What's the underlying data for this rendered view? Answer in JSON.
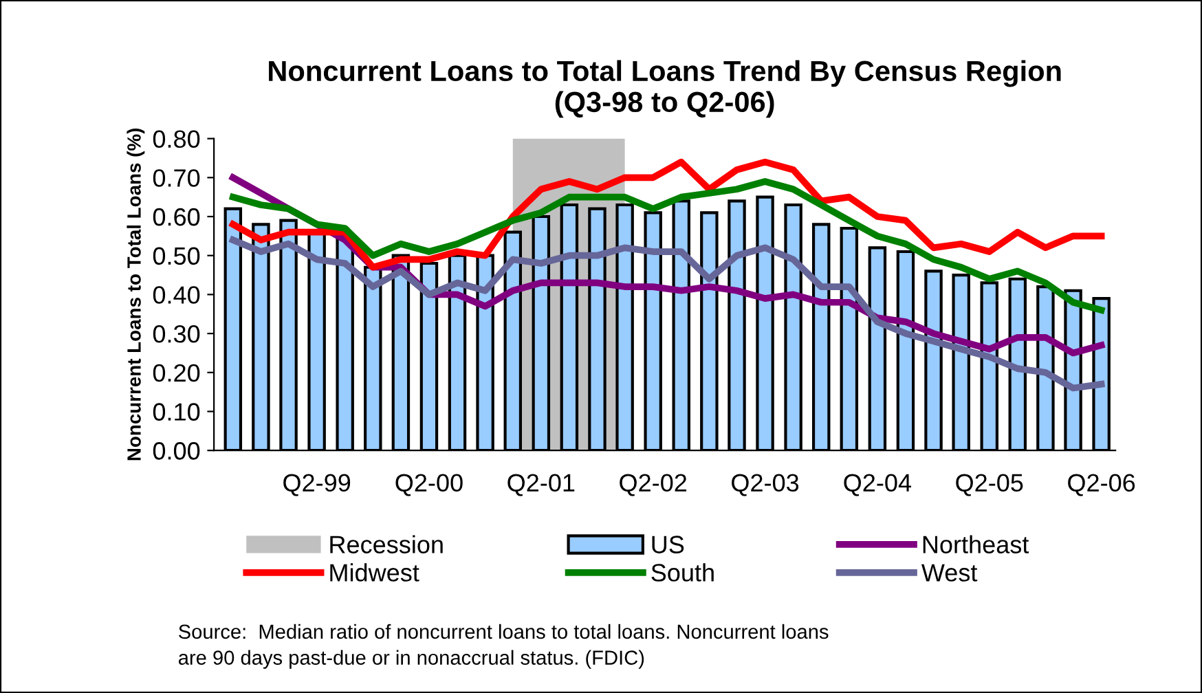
{
  "chart_data": {
    "type": "bar",
    "title": "Noncurrent Loans to Total Loans Trend By Census Region\n(Q3-98 to Q2-06)",
    "ylabel": "Noncurrent Loans to Total Loans (%)",
    "x": [
      "1998-09",
      "1998-12",
      "1999-03",
      "1999-06",
      "1999-09",
      "1999-12",
      "2000-03",
      "2000-06",
      "2000-09",
      "2000-12",
      "2001-03",
      "2001-06",
      "2001-09",
      "2001-12",
      "2002-03",
      "2002-06",
      "2002-09",
      "2002-12",
      "2003-03",
      "2003-06",
      "2003-09",
      "2003-12",
      "2004-03",
      "2004-06",
      "2004-09",
      "2004-12",
      "2005-03",
      "2005-06",
      "2005-09",
      "2005-12",
      "2006-03",
      "2006-06"
    ],
    "series": [
      {
        "name": "US",
        "color": "#99ccff",
        "values": [
          0.62,
          0.58,
          0.59,
          0.56,
          0.55,
          0.47,
          0.5,
          0.48,
          0.5,
          0.5,
          0.56,
          0.6,
          0.63,
          0.62,
          0.63,
          0.61,
          0.64,
          0.61,
          0.64,
          0.65,
          0.63,
          0.58,
          0.57,
          0.52,
          0.51,
          0.46,
          0.45,
          0.43,
          0.44,
          0.42,
          0.41,
          0.39
        ]
      },
      {
        "name": "Northeast",
        "type": "line",
        "color": "#800080",
        "values": [
          0.7,
          0.66,
          0.62,
          0.58,
          0.54,
          0.47,
          0.47,
          0.4,
          0.4,
          0.37,
          0.41,
          0.43,
          0.43,
          0.43,
          0.42,
          0.42,
          0.41,
          0.42,
          0.41,
          0.39,
          0.4,
          0.38,
          0.38,
          0.34,
          0.33,
          0.3,
          0.28,
          0.26,
          0.29,
          0.29,
          0.25,
          0.27
        ]
      },
      {
        "name": "Midwest",
        "type": "line",
        "color": "#ff0000",
        "values": [
          0.58,
          0.54,
          0.56,
          0.56,
          0.56,
          0.47,
          0.49,
          0.49,
          0.51,
          0.5,
          0.6,
          0.67,
          0.69,
          0.67,
          0.7,
          0.7,
          0.74,
          0.67,
          0.72,
          0.74,
          0.72,
          0.64,
          0.65,
          0.6,
          0.59,
          0.52,
          0.53,
          0.51,
          0.56,
          0.52,
          0.55,
          0.55
        ]
      },
      {
        "name": "South",
        "type": "line",
        "color": "#008000",
        "values": [
          0.65,
          0.63,
          0.62,
          0.58,
          0.57,
          0.5,
          0.53,
          0.51,
          0.53,
          0.56,
          0.59,
          0.61,
          0.65,
          0.65,
          0.65,
          0.62,
          0.65,
          0.66,
          0.67,
          0.69,
          0.67,
          0.63,
          0.59,
          0.55,
          0.53,
          0.49,
          0.47,
          0.44,
          0.46,
          0.43,
          0.38,
          0.36
        ]
      },
      {
        "name": "West",
        "type": "line",
        "color": "#666699",
        "values": [
          0.54,
          0.51,
          0.53,
          0.49,
          0.48,
          0.42,
          0.46,
          0.4,
          0.43,
          0.41,
          0.49,
          0.48,
          0.5,
          0.5,
          0.52,
          0.51,
          0.51,
          0.44,
          0.5,
          0.52,
          0.49,
          0.42,
          0.42,
          0.33,
          0.3,
          0.28,
          0.26,
          0.24,
          0.21,
          0.2,
          0.16,
          0.17
        ]
      }
    ],
    "bands": [
      {
        "axis": "x",
        "from": "2001-03",
        "to": "2002-03",
        "label": "Recession",
        "color": "#c0c0c0"
      }
    ],
    "ylim": [
      0,
      0.8
    ],
    "yticks": [
      {
        "value": 0,
        "label": "0.00"
      },
      {
        "value": 0.1,
        "label": "0.10"
      },
      {
        "value": 0.2,
        "label": "0.20"
      },
      {
        "value": 0.3,
        "label": "0.30"
      },
      {
        "value": 0.4,
        "label": "0.40"
      },
      {
        "value": 0.5,
        "label": "0.50"
      },
      {
        "value": 0.6,
        "label": "0.60"
      },
      {
        "value": 0.7,
        "label": "0.70"
      },
      {
        "value": 0.8,
        "label": "0.80"
      }
    ],
    "xlim": [
      "1998-07-15",
      "2006-07-31"
    ],
    "xticks": [
      {
        "value": "1999-06",
        "label": "Q2-99"
      },
      {
        "value": "2000-06",
        "label": "Q2-00"
      },
      {
        "value": "2001-06",
        "label": "Q2-01"
      },
      {
        "value": "2002-06",
        "label": "Q2-02"
      },
      {
        "value": "2003-06",
        "label": "Q2-03"
      },
      {
        "value": "2004-06",
        "label": "Q2-04"
      },
      {
        "value": "2005-06",
        "label": "Q2-05"
      },
      {
        "value": "2006-06",
        "label": "Q2-06"
      }
    ],
    "grid": false,
    "legend": "bottom",
    "marker": "none",
    "line_style": "solid",
    "annotations": [
      "Source:  Median ratio of noncurrent loans to total loans. Noncurrent loans\nare 90 days past-due or in nonaccrual status. (FDIC)"
    ]
  }
}
